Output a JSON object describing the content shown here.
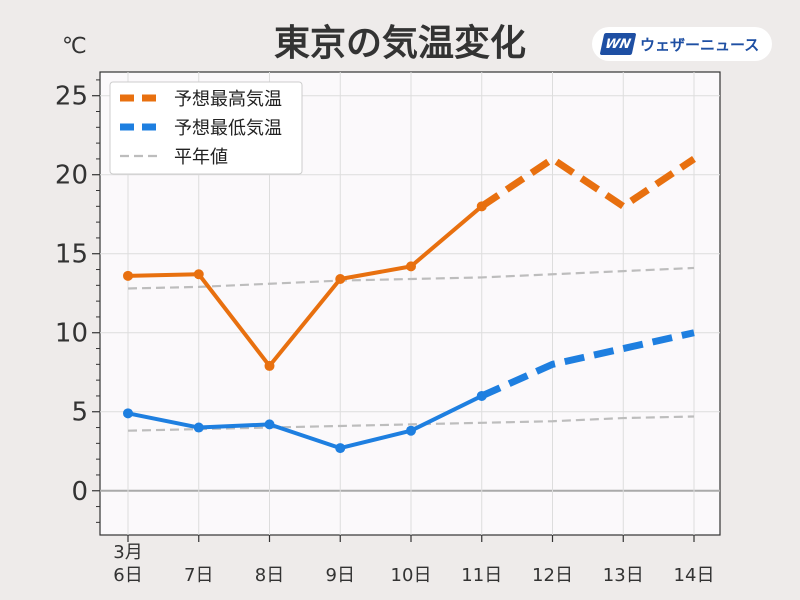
{
  "header": {
    "title": "東京の気温変化",
    "unit": "℃",
    "brand": {
      "mark": "WN",
      "name": "ウェザーニュース",
      "color": "#1e4fa3"
    }
  },
  "chart_data": {
    "type": "line",
    "title": "東京の気温変化",
    "xlabel": "",
    "ylabel": "℃",
    "x_month_label": "3月",
    "categories": [
      "6日",
      "7日",
      "8日",
      "9日",
      "10日",
      "11日",
      "12日",
      "13日",
      "14日"
    ],
    "ylim": [
      -2.8,
      26.5
    ],
    "yticks": [
      0,
      5,
      10,
      15,
      20,
      25
    ],
    "grid": true,
    "legend_position": "top-left",
    "series": [
      {
        "name": "予想最高気温",
        "color": "#e8700f",
        "values": [
          13.6,
          13.7,
          7.9,
          13.4,
          14.2,
          18.0,
          21.0,
          18.0,
          21.0
        ],
        "observed_until_index": 5
      },
      {
        "name": "予想最低気温",
        "color": "#1e7fe0",
        "values": [
          4.9,
          4.0,
          4.2,
          2.7,
          3.8,
          6.0,
          8.0,
          9.0,
          10.0
        ],
        "observed_until_index": 5
      },
      {
        "name": "平年値",
        "color": "#bdbdbd",
        "values_high": [
          12.8,
          12.9,
          13.1,
          13.3,
          13.4,
          13.5,
          13.7,
          13.9,
          14.1
        ],
        "values_low": [
          3.8,
          3.9,
          4.0,
          4.1,
          4.2,
          4.3,
          4.4,
          4.6,
          4.7
        ]
      }
    ]
  }
}
